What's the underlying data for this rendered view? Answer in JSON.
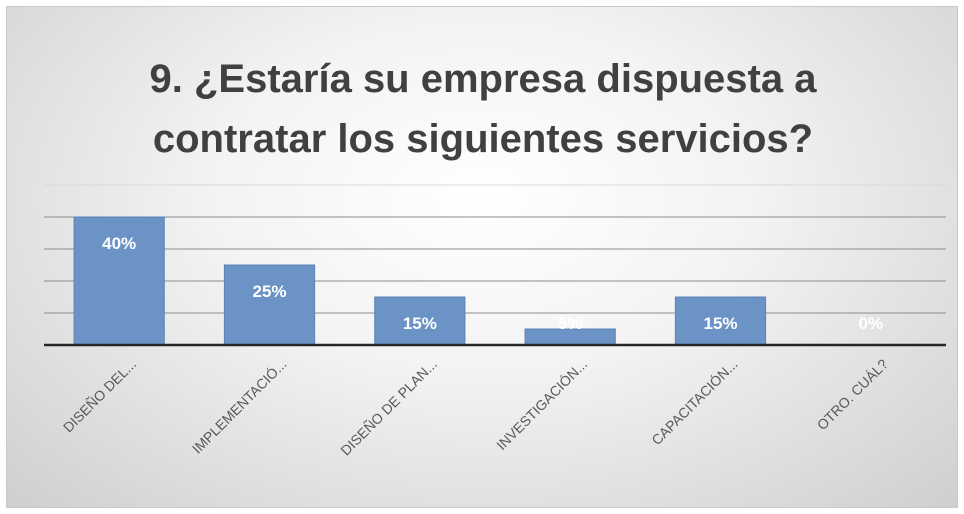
{
  "chart_data": {
    "type": "bar",
    "title_lines": [
      "9. ¿Estaría su empresa dispuesta a",
      "contratar los siguientes servicios?"
    ],
    "categories": [
      "DISEÑO DEL...",
      "IMPLEMENTACIÓ...",
      "DISEÑO DE PLAN...",
      "INVESTIGACIÓN...",
      "CAPACITACIÓN...",
      "OTRO. CUÁL?"
    ],
    "values": [
      40,
      25,
      15,
      5,
      15,
      0
    ],
    "data_labels": [
      "40%",
      "25%",
      "15%",
      "5%",
      "15%",
      "0%"
    ],
    "ylim": [
      0,
      50
    ],
    "grid": true,
    "bar_color": "#6b93c6",
    "bar_edge_color": "#5a82b6",
    "label_color": "#ffffff",
    "axis_label_color": "#595959"
  }
}
